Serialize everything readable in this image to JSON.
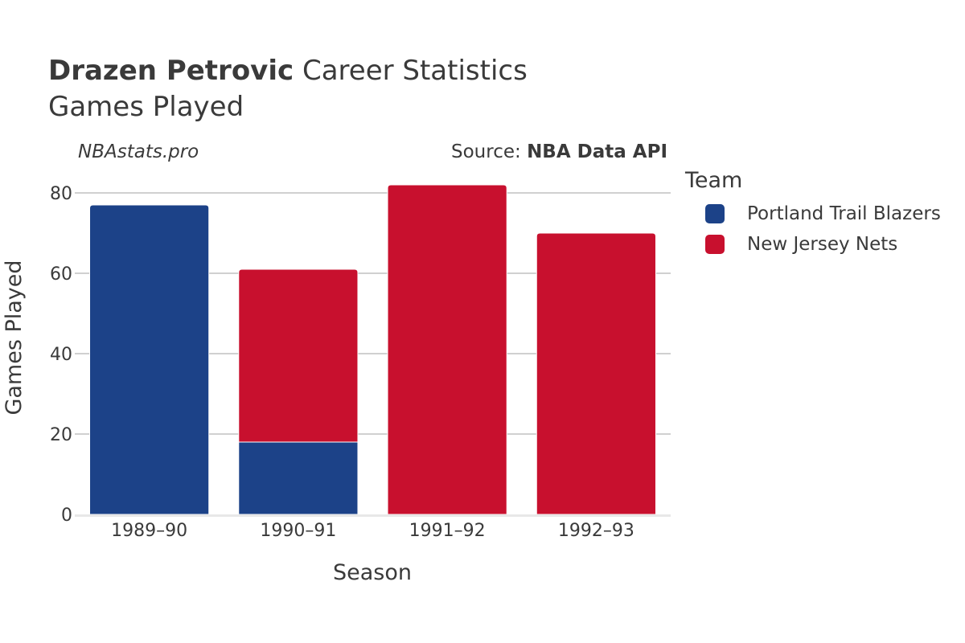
{
  "header": {
    "title_bold": "Drazen Petrovic",
    "title_rest": "Career Statistics",
    "subtitle": "Games Played",
    "watermark": "NBAstats.pro",
    "source_prefix": "Source: ",
    "source_name": "NBA Data API"
  },
  "legend": {
    "title": "Team",
    "items": [
      {
        "label": "Portland Trail Blazers",
        "color": "#1c4288"
      },
      {
        "label": "New Jersey Nets",
        "color": "#c8102e"
      }
    ]
  },
  "chart_data": {
    "type": "bar",
    "stacked": true,
    "categories": [
      "1989–90",
      "1990–91",
      "1991–92",
      "1992–93"
    ],
    "series": [
      {
        "name": "Portland Trail Blazers",
        "color": "#1c4288",
        "values": [
          77,
          18,
          0,
          0
        ]
      },
      {
        "name": "New Jersey Nets",
        "color": "#c8102e",
        "values": [
          0,
          43,
          82,
          70
        ]
      }
    ],
    "xlabel": "Season",
    "ylabel": "Games Played",
    "ylim": [
      0,
      85
    ],
    "yticks": [
      0,
      20,
      40,
      60,
      80
    ],
    "grid": true,
    "legend_position": "right"
  }
}
